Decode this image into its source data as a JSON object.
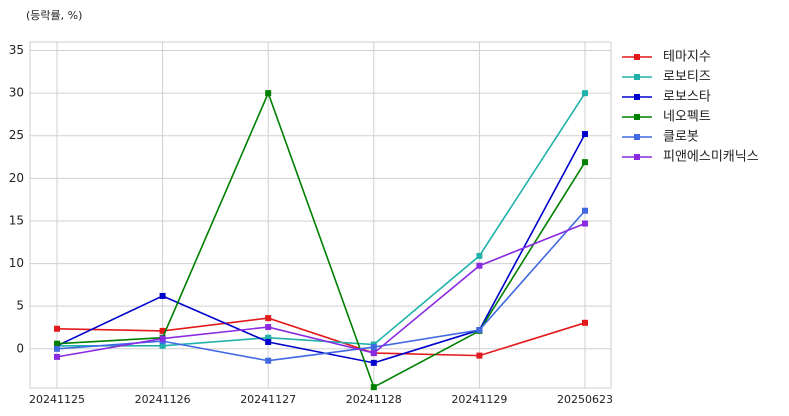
{
  "chart_data": {
    "type": "line",
    "y_label": "(등락률, %)",
    "categories": [
      "20241125",
      "20241126",
      "20241127",
      "20241128",
      "20241129",
      "20250623"
    ],
    "series": [
      {
        "name": "테마지수",
        "color": "#e31a1c",
        "values": [
          2.35,
          2.1,
          3.6,
          -0.5,
          -0.8,
          3.05
        ]
      },
      {
        "name": "로보티즈",
        "color": "#20b2aa",
        "values": [
          0.35,
          0.35,
          1.3,
          0.5,
          10.9,
          30
        ]
      },
      {
        "name": "로보스타",
        "color": "#0000cd",
        "values": [
          0.35,
          6.2,
          0.8,
          -1.65,
          2.2,
          25.2
        ]
      },
      {
        "name": "네오펙트",
        "color": "#008000",
        "values": [
          0.6,
          1.3,
          30,
          -4.5,
          2.1,
          21.9
        ]
      },
      {
        "name": "클로봇",
        "color": "#4169e1",
        "values": [
          0,
          0.9,
          -1.4,
          0.2,
          2.2,
          16.2
        ]
      },
      {
        "name": "피앤에스미캐닉스",
        "color": "#8a2be2",
        "values": [
          -0.95,
          1.2,
          2.55,
          -0.5,
          9.75,
          14.7
        ]
      }
    ],
    "ylim": [
      -4.6,
      36
    ],
    "yticks": [
      0,
      5,
      10,
      15,
      20,
      25,
      30,
      35
    ],
    "grid": true,
    "legend": "outside-right"
  }
}
